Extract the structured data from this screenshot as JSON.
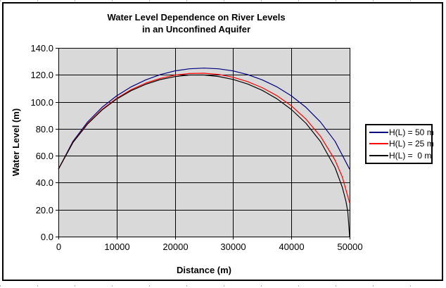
{
  "title": {
    "line1": "Water Level Dependence on River Levels",
    "line2": "in an Unconfined Aquifer"
  },
  "axes": {
    "x_title": "Distance (m)",
    "y_title": "Water Level (m)"
  },
  "colors": {
    "plot_background": "#D9D9D9",
    "gridline": "#000000",
    "frame_border": "#000000"
  },
  "chart_data": {
    "type": "line",
    "title": "Water Level Dependence on River Levels in an Unconfined Aquifer",
    "xlabel": "Distance (m)",
    "ylabel": "Water Level (m)",
    "xlim": [
      0,
      50000
    ],
    "ylim": [
      0,
      140
    ],
    "x_ticks": [
      0,
      10000,
      20000,
      30000,
      40000,
      50000
    ],
    "x_tick_labels": [
      "0",
      "10000",
      "20000",
      "30000",
      "40000",
      "50000"
    ],
    "y_ticks": [
      0,
      20,
      40,
      60,
      80,
      100,
      120,
      140
    ],
    "y_tick_labels": [
      "0.0",
      "20.0",
      "40.0",
      "60.0",
      "80.0",
      "100.0",
      "120.0",
      "140.0"
    ],
    "grid": true,
    "plot_bg": "#D9D9D9",
    "legend_position": "right",
    "series": [
      {
        "name": "H(L) = 50 m",
        "color": "#000080",
        "points": [
          [
            0,
            50
          ],
          [
            2500,
            70.7
          ],
          [
            5000,
            85.0
          ],
          [
            7500,
            95.9
          ],
          [
            10000,
            104.4
          ],
          [
            12500,
            111.1
          ],
          [
            15000,
            116.3
          ],
          [
            17500,
            120.2
          ],
          [
            20000,
            122.9
          ],
          [
            22500,
            124.5
          ],
          [
            25000,
            125.0
          ],
          [
            27500,
            124.5
          ],
          [
            30000,
            122.9
          ],
          [
            32500,
            120.2
          ],
          [
            35000,
            116.3
          ],
          [
            37500,
            111.1
          ],
          [
            40000,
            104.4
          ],
          [
            42500,
            95.9
          ],
          [
            45000,
            85.0
          ],
          [
            47500,
            70.7
          ],
          [
            50000,
            50.0
          ]
        ]
      },
      {
        "name": "H(L) = 25 m",
        "color": "#FF0000",
        "points": [
          [
            0,
            50
          ],
          [
            2500,
            70.0
          ],
          [
            5000,
            83.9
          ],
          [
            7500,
            94.4
          ],
          [
            10000,
            102.6
          ],
          [
            12500,
            109.0
          ],
          [
            15000,
            113.9
          ],
          [
            17500,
            117.4
          ],
          [
            20000,
            119.8
          ],
          [
            22500,
            121.0
          ],
          [
            25000,
            121.2
          ],
          [
            27500,
            120.3
          ],
          [
            30000,
            118.2
          ],
          [
            32500,
            115.0
          ],
          [
            35000,
            110.5
          ],
          [
            37500,
            104.6
          ],
          [
            40000,
            97.0
          ],
          [
            42500,
            87.2
          ],
          [
            45000,
            74.4
          ],
          [
            47500,
            56.7
          ],
          [
            48750,
            44.2
          ],
          [
            50000,
            25.0
          ]
        ]
      },
      {
        "name": "H(L) =  0 m",
        "color": "#000000",
        "points": [
          [
            0,
            50
          ],
          [
            2500,
            69.8
          ],
          [
            5000,
            83.5
          ],
          [
            7500,
            93.9
          ],
          [
            10000,
            102.0
          ],
          [
            12500,
            108.3
          ],
          [
            15000,
            113.0
          ],
          [
            17500,
            116.5
          ],
          [
            20000,
            118.7
          ],
          [
            22500,
            119.9
          ],
          [
            25000,
            119.9
          ],
          [
            27500,
            118.8
          ],
          [
            30000,
            116.6
          ],
          [
            32500,
            113.2
          ],
          [
            35000,
            108.5
          ],
          [
            37500,
            102.3
          ],
          [
            40000,
            94.3
          ],
          [
            42500,
            84.1
          ],
          [
            45000,
            70.5
          ],
          [
            47500,
            51.2
          ],
          [
            48750,
            36.6
          ],
          [
            49375,
            26.1
          ],
          [
            49688,
            18.5
          ],
          [
            50000,
            0.0
          ]
        ]
      }
    ]
  }
}
